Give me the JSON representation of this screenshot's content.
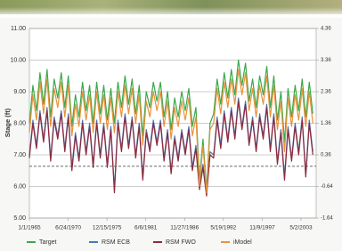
{
  "chart_data": {
    "type": "line",
    "y_label": "Stage (ft)",
    "x": [
      "1965-01-01",
      "1965-07-01",
      "1966-01-01",
      "1966-07-01",
      "1967-01-01",
      "1967-07-01",
      "1968-01-01",
      "1968-07-01",
      "1969-01-01",
      "1969-07-01",
      "1970-01-01",
      "1970-07-01",
      "1971-01-01",
      "1971-07-01",
      "1972-01-01",
      "1972-07-01",
      "1973-01-01",
      "1973-07-01",
      "1974-01-01",
      "1974-07-01",
      "1975-01-01",
      "1975-07-01",
      "1976-01-01",
      "1976-07-01",
      "1977-01-01",
      "1977-07-01",
      "1978-01-01",
      "1978-07-01",
      "1979-01-01",
      "1979-07-01",
      "1980-01-01",
      "1980-07-01",
      "1981-01-01",
      "1981-07-01",
      "1982-01-01",
      "1982-07-01",
      "1983-01-01",
      "1983-07-01",
      "1984-01-01",
      "1984-07-01",
      "1985-01-01",
      "1985-07-01",
      "1986-01-01",
      "1986-07-01",
      "1987-01-01",
      "1987-07-01",
      "1988-01-01",
      "1988-07-01",
      "1989-01-01",
      "1989-07-01",
      "1990-01-01",
      "1990-07-01",
      "1991-01-01",
      "1991-07-01",
      "1992-01-01",
      "1992-07-01",
      "1993-01-01",
      "1993-07-01",
      "1994-01-01",
      "1994-07-01",
      "1995-01-01",
      "1995-07-01",
      "1996-01-01",
      "1996-07-01",
      "1997-01-01",
      "1997-07-01",
      "1998-01-01",
      "1998-07-01",
      "1999-01-01",
      "1999-07-01",
      "2000-01-01",
      "2000-07-01",
      "2001-01-01",
      "2001-07-01",
      "2002-01-01",
      "2002-07-01",
      "2003-01-01",
      "2003-07-01",
      "2004-01-01",
      "2004-07-01",
      "2005-01-01"
    ],
    "series": [
      {
        "name": "Target",
        "color": "#3aa84a",
        "values": [
          8.0,
          9.2,
          8.4,
          9.6,
          8.6,
          9.7,
          8.2,
          9.4,
          8.8,
          9.6,
          8.5,
          9.5,
          7.9,
          8.9,
          8.2,
          9.3,
          8.4,
          9.2,
          8.0,
          9.3,
          8.3,
          9.2,
          8.1,
          9.1,
          8.0,
          9.3,
          8.5,
          9.5,
          8.6,
          9.4,
          8.3,
          9.2,
          7.6,
          9.0,
          8.5,
          9.3,
          8.7,
          9.3,
          8.2,
          9.0,
          7.8,
          8.8,
          8.2,
          9.0,
          8.4,
          9.1,
          7.9,
          8.5,
          6.2,
          7.5,
          5.9,
          8.0,
          8.3,
          9.4,
          8.6,
          9.6,
          8.8,
          9.7,
          8.9,
          10.0,
          9.2,
          9.9,
          8.7,
          9.4,
          8.5,
          9.5,
          8.9,
          9.8,
          8.5,
          9.5,
          8.1,
          9.0,
          7.4,
          9.1,
          8.2,
          9.2,
          8.4,
          9.4,
          8.2,
          9.3,
          8.3
        ]
      },
      {
        "name": "RSM ECB",
        "color": "#4a78b8",
        "values": [
          7.0,
          8.1,
          7.3,
          8.4,
          7.5,
          8.5,
          6.9,
          8.2,
          7.6,
          8.4,
          7.2,
          8.3,
          6.6,
          7.7,
          6.9,
          8.1,
          7.1,
          8.0,
          6.7,
          8.1,
          7.0,
          8.0,
          6.7,
          7.9,
          5.9,
          8.1,
          7.2,
          8.3,
          7.3,
          8.2,
          7.0,
          8.0,
          6.3,
          7.8,
          7.2,
          8.1,
          7.4,
          8.1,
          6.9,
          7.8,
          6.5,
          7.6,
          6.9,
          7.8,
          7.1,
          7.9,
          6.6,
          7.3,
          6.0,
          6.7,
          5.8,
          7.1,
          7.0,
          8.2,
          7.3,
          8.4,
          7.5,
          8.5,
          7.6,
          8.8,
          7.9,
          8.7,
          7.4,
          8.2,
          7.2,
          8.3,
          7.6,
          8.6,
          7.2,
          8.3,
          6.8,
          7.8,
          6.3,
          7.9,
          6.9,
          8.0,
          7.1,
          8.2,
          6.4,
          8.1,
          7.1
        ]
      },
      {
        "name": "RSM FWO",
        "color": "#8c2a3c",
        "values": [
          6.9,
          8.0,
          7.2,
          8.3,
          7.4,
          8.4,
          6.8,
          8.1,
          7.5,
          8.3,
          7.1,
          8.2,
          6.5,
          7.6,
          6.8,
          8.0,
          7.0,
          7.9,
          6.6,
          8.0,
          6.9,
          7.9,
          6.6,
          7.8,
          5.8,
          8.0,
          7.1,
          8.2,
          7.2,
          8.1,
          6.9,
          7.9,
          6.2,
          7.7,
          7.1,
          8.0,
          7.3,
          8.0,
          6.8,
          7.7,
          6.4,
          7.5,
          6.8,
          7.7,
          7.0,
          7.8,
          6.5,
          7.2,
          5.9,
          6.6,
          5.7,
          7.0,
          6.9,
          8.1,
          7.2,
          8.3,
          7.4,
          8.4,
          7.5,
          8.7,
          7.8,
          8.6,
          7.3,
          8.1,
          7.1,
          8.2,
          7.5,
          8.5,
          7.1,
          8.2,
          6.7,
          7.7,
          6.2,
          7.8,
          6.8,
          7.9,
          7.0,
          8.1,
          6.3,
          8.0,
          7.0
        ]
      },
      {
        "name": "iModel",
        "color": "#e8923a",
        "values": [
          7.7,
          8.9,
          8.1,
          9.3,
          8.3,
          9.4,
          7.9,
          9.1,
          8.5,
          9.3,
          8.2,
          9.2,
          7.6,
          8.6,
          7.9,
          9.0,
          8.1,
          8.9,
          7.7,
          9.0,
          8.0,
          8.9,
          7.8,
          8.8,
          7.7,
          9.0,
          8.2,
          9.2,
          8.3,
          9.1,
          8.0,
          8.9,
          7.3,
          8.7,
          8.2,
          9.0,
          8.4,
          9.0,
          7.9,
          8.7,
          7.5,
          8.5,
          7.9,
          8.7,
          8.1,
          8.8,
          7.6,
          8.2,
          6.0,
          7.3,
          5.8,
          7.8,
          8.0,
          9.1,
          8.3,
          9.3,
          8.5,
          9.4,
          8.6,
          9.7,
          8.9,
          9.6,
          8.4,
          9.1,
          8.2,
          9.2,
          8.6,
          9.5,
          8.2,
          9.2,
          7.8,
          8.7,
          7.1,
          8.8,
          7.9,
          8.9,
          8.1,
          9.1,
          7.9,
          9.0,
          8.0
        ]
      }
    ],
    "xlim": [
      "1965-01-01",
      "2005-06-21"
    ],
    "xticks": [
      {
        "value": "1965-01-01",
        "label": "1/1/1965"
      },
      {
        "value": "1970-06-24",
        "label": "6/24/1970"
      },
      {
        "value": "1975-12-15",
        "label": "12/15/1975"
      },
      {
        "value": "1981-06-06",
        "label": "6/6/1981"
      },
      {
        "value": "1986-11-27",
        "label": "11/27/1986"
      },
      {
        "value": "1992-05-19",
        "label": "5/19/1992"
      },
      {
        "value": "1997-11-09",
        "label": "11/9/1997"
      },
      {
        "value": "2003-05-02",
        "label": "5/2/2003"
      }
    ],
    "ylim": [
      5,
      11
    ],
    "yticks": [
      {
        "value": 5,
        "label": "5.00"
      },
      {
        "value": 6,
        "label": "6.00"
      },
      {
        "value": 7,
        "label": "7.00"
      },
      {
        "value": 8,
        "label": "8.00"
      },
      {
        "value": 9,
        "label": "9.00"
      },
      {
        "value": 10,
        "label": "10.00"
      },
      {
        "value": 11,
        "label": "11.00"
      }
    ],
    "y2lim": [
      -1.64,
      4.36
    ],
    "y2ticks": [
      -1.64,
      -0.64,
      0.36,
      1.36,
      2.36,
      3.36,
      4.36
    ],
    "reference_line": 6.64,
    "grid": true,
    "legend": "bottom"
  }
}
